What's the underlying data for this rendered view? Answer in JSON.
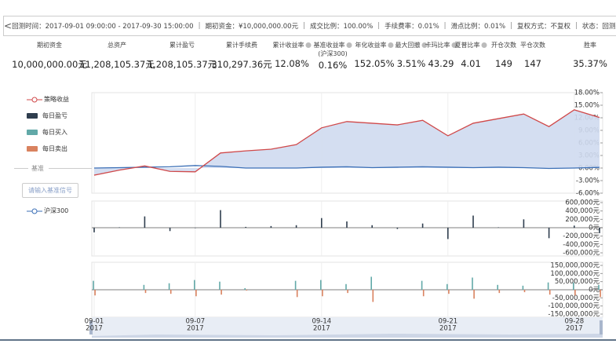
{
  "toolbar": {
    "items": [
      "回测时间：2017-09-01 09:00:00 - 2017-09-30 15:00:00",
      "期初资金：¥10,000,000.00元",
      "成交比例：100.00%",
      "手续费率：0.01%",
      "滑点比例：0.01%",
      "复权方式：不复权",
      "状态：回测完"
    ]
  },
  "stats": [
    {
      "label": "期初资金",
      "value": "10,000,000.00元"
    },
    {
      "label": "总资产",
      "value": "11,208,105.37元"
    },
    {
      "label": "累计盈亏",
      "value": "1,208,105.37元"
    },
    {
      "label": "累计手续费",
      "value": "310,297.36元"
    },
    {
      "label": "累计收益率",
      "value": "12.08%",
      "info": true
    },
    {
      "label": "基准收益率",
      "sublabel": "(沪深300)",
      "value": "0.16%",
      "info": true
    },
    {
      "label": "年化收益率",
      "value": "152.05%",
      "info": true
    },
    {
      "label": "最大回撤",
      "value": "3.51%",
      "info": true
    },
    {
      "label": "卡玛比率",
      "value": "43.29",
      "info": true
    },
    {
      "label": "夏普比率",
      "value": "4.01",
      "info": true
    },
    {
      "label": "开仓次数",
      "value": "149"
    },
    {
      "label": "平仓次数",
      "value": "147"
    },
    {
      "label": "胜率",
      "value": "35.37%"
    }
  ],
  "legend": {
    "benchmark_header": "基准",
    "benchmark_input": "请输入基准信号"
  },
  "chart_data": [
    {
      "type": "line",
      "area_color": "#cfdaf0",
      "series": [
        {
          "name": "策略收益",
          "color": "#d0494a",
          "values": [
            -1.7,
            -0.5,
            0.5,
            -0.8,
            -0.9,
            3.6,
            4.1,
            4.5,
            5.6,
            9.6,
            11.1,
            10.7,
            10.3,
            11.4,
            7.7,
            10.7,
            11.8,
            12.9,
            9.9,
            13.9,
            12.08
          ]
        },
        {
          "name": "沪深300",
          "color": "#3b6fb6",
          "values": [
            0,
            0.1,
            0.2,
            0.3,
            0.6,
            0.4,
            0,
            0,
            0,
            0.2,
            0.3,
            0.1,
            0.2,
            0.3,
            0.2,
            0.1,
            0.2,
            0.1,
            -0.1,
            0,
            0.16
          ]
        }
      ],
      "ylim": [
        -6,
        18
      ],
      "yticks": [
        {
          "value": 18,
          "label": "18.00%"
        },
        {
          "value": 15,
          "label": "15.00%"
        },
        {
          "value": 12,
          "label": "12.00%"
        },
        {
          "value": 9,
          "label": "9.00%"
        },
        {
          "value": 6,
          "label": "6.00%"
        },
        {
          "value": 3,
          "label": "3.00%"
        },
        {
          "value": 0,
          "label": "0.00%"
        },
        {
          "value": -3,
          "label": "-3.00%"
        },
        {
          "value": -6,
          "label": "-6.00%"
        }
      ]
    },
    {
      "type": "bar",
      "series": [
        {
          "name": "每日盈亏",
          "color": "#2f3e4e",
          "values": [
            -110000,
            10000,
            270000,
            -80000,
            -10000,
            420000,
            20000,
            40000,
            60000,
            230000,
            150000,
            60000,
            -30000,
            100000,
            -270000,
            290000,
            10000,
            200000,
            -250000,
            50000,
            -130000
          ]
        }
      ],
      "ylim": [
        -600000,
        600000
      ],
      "yticks": [
        {
          "value": 600000,
          "label": "600,000元"
        },
        {
          "value": 400000,
          "label": "400,000元"
        },
        {
          "value": 200000,
          "label": "200,000元"
        },
        {
          "value": 0,
          "label": "0元"
        },
        {
          "value": -200000,
          "label": "-200,000元"
        },
        {
          "value": -400000,
          "label": "-400,000元"
        },
        {
          "value": -600000,
          "label": "-600,000元"
        }
      ]
    },
    {
      "type": "bar",
      "categories": [
        "09-01",
        null,
        null,
        null,
        "09-07",
        null,
        null,
        null,
        null,
        "09-14",
        null,
        null,
        null,
        null,
        "09-21",
        null,
        null,
        null,
        null,
        "09-28",
        null
      ],
      "x_sublabel": "2017",
      "series": [
        {
          "name": "每日买入",
          "color": "#62a9a8",
          "values": [
            55000000,
            0,
            30000000,
            40000000,
            60000000,
            50000000,
            10000000,
            0,
            55000000,
            60000000,
            35000000,
            80000000,
            0,
            55000000,
            35000000,
            75000000,
            30000000,
            25000000,
            45000000,
            45000000,
            30000000
          ]
        },
        {
          "name": "每日卖出",
          "color": "#d9825f",
          "values": [
            -35000000,
            0,
            -20000000,
            -25000000,
            -40000000,
            -30000000,
            -5000000,
            0,
            -45000000,
            -40000000,
            -20000000,
            -75000000,
            0,
            -40000000,
            -25000000,
            -55000000,
            -20000000,
            -15000000,
            -30000000,
            -35000000,
            -45000000
          ]
        }
      ],
      "ylim": [
        -150000000,
        150000000
      ],
      "yticks": [
        {
          "value": 150000000,
          "label": "150,000,000元"
        },
        {
          "value": 100000000,
          "label": "100,000,000元"
        },
        {
          "value": 50000000,
          "label": "50,000,000元"
        },
        {
          "value": 0,
          "label": "0元"
        },
        {
          "value": -50000000,
          "label": "-50,000,000元"
        },
        {
          "value": -100000000,
          "label": "-100,000,000元"
        },
        {
          "value": -150000000,
          "label": "-150,000,000元"
        }
      ]
    }
  ]
}
